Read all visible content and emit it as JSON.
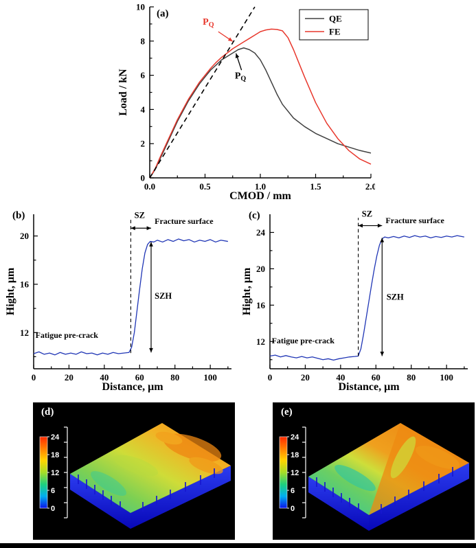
{
  "figure": {
    "background": "#ffffff",
    "panels": {
      "a": {
        "label": "(a)"
      },
      "b": {
        "label": "(b)"
      },
      "c": {
        "label": "(c)"
      },
      "d": {
        "label": "(d)"
      },
      "e": {
        "label": "(e)"
      }
    },
    "colormap": {
      "ticks_top_to_bottom": [
        "24",
        "18",
        "12",
        "6",
        "0"
      ],
      "colors_bottom_to_top": [
        "#0b14e8",
        "#00aef0",
        "#1ecf7e",
        "#a6dc28",
        "#ffd400",
        "#ff7f00",
        "#ff2a00"
      ]
    }
  },
  "chart_data": [
    {
      "id": "a",
      "type": "line",
      "xlabel": "CMOD / mm",
      "ylabel": "Load / kN",
      "xlim": [
        0,
        2
      ],
      "ylim": [
        0,
        10
      ],
      "xticks": [
        {
          "v": 0,
          "t": "0.0"
        },
        {
          "v": 0.5,
          "t": "0.5"
        },
        {
          "v": 1,
          "t": "1.0"
        },
        {
          "v": 1.5,
          "t": "1.5"
        },
        {
          "v": 2,
          "t": "2.0"
        }
      ],
      "yticks": [
        {
          "v": 0,
          "t": "0"
        },
        {
          "v": 2,
          "t": "2"
        },
        {
          "v": 4,
          "t": "4"
        },
        {
          "v": 6,
          "t": "6"
        },
        {
          "v": 8,
          "t": "8"
        },
        {
          "v": 10,
          "t": "10"
        }
      ],
      "xminor": [
        0.25,
        0.75,
        1.25,
        1.75
      ],
      "yminor": [
        1,
        3,
        5,
        7,
        9
      ],
      "legend_position": "top-right",
      "legend": [
        {
          "label": "QE",
          "color": "#404040"
        },
        {
          "label": "FE",
          "color": "#e8372c"
        }
      ],
      "series": [
        {
          "name": "QE",
          "color": "#404040",
          "width": 1.5,
          "x": [
            0,
            0.05,
            0.1,
            0.15,
            0.2,
            0.25,
            0.3,
            0.35,
            0.4,
            0.45,
            0.5,
            0.55,
            0.6,
            0.65,
            0.7,
            0.75,
            0.8,
            0.85,
            0.9,
            0.95,
            1.0,
            1.05,
            1.1,
            1.15,
            1.2,
            1.3,
            1.4,
            1.5,
            1.6,
            1.7,
            1.8,
            1.9,
            2.0
          ],
          "y": [
            0,
            0.5,
            1.2,
            1.9,
            2.6,
            3.3,
            3.9,
            4.5,
            5.0,
            5.5,
            5.9,
            6.3,
            6.6,
            6.9,
            7.1,
            7.3,
            7.5,
            7.6,
            7.5,
            7.3,
            6.9,
            6.3,
            5.6,
            4.9,
            4.3,
            3.5,
            3.0,
            2.6,
            2.3,
            2.0,
            1.8,
            1.6,
            1.45
          ]
        },
        {
          "name": "FE",
          "color": "#e8372c",
          "width": 1.5,
          "x": [
            0,
            0.05,
            0.1,
            0.15,
            0.2,
            0.25,
            0.3,
            0.35,
            0.4,
            0.45,
            0.5,
            0.55,
            0.6,
            0.65,
            0.7,
            0.75,
            0.8,
            0.85,
            0.9,
            0.95,
            1.0,
            1.05,
            1.1,
            1.15,
            1.2,
            1.25,
            1.3,
            1.35,
            1.4,
            1.5,
            1.6,
            1.7,
            1.8,
            1.9,
            2.0
          ],
          "y": [
            0,
            0.55,
            1.3,
            2.0,
            2.7,
            3.4,
            4.0,
            4.6,
            5.1,
            5.6,
            6.0,
            6.4,
            6.75,
            7.05,
            7.3,
            7.55,
            7.75,
            7.95,
            8.15,
            8.35,
            8.55,
            8.65,
            8.7,
            8.68,
            8.6,
            8.2,
            7.5,
            6.7,
            5.9,
            4.4,
            3.2,
            2.3,
            1.6,
            1.1,
            0.8
          ]
        },
        {
          "name": "95-percent-secant",
          "color": "#000000",
          "width": 1.6,
          "dash": "7,5",
          "x": [
            0,
            0.95
          ],
          "y": [
            0,
            10
          ]
        }
      ],
      "annotations": [
        {
          "type": "text",
          "text": "P",
          "sub": "Q",
          "x": 0.53,
          "y": 8.95,
          "color": "#e8372c",
          "size": 14
        },
        {
          "type": "arrow",
          "x1": 0.62,
          "y1": 8.55,
          "x2": 0.75,
          "y2": 7.98,
          "color": "#e8372c"
        },
        {
          "type": "text",
          "text": "P",
          "sub": "Q",
          "x": 0.82,
          "y": 5.8,
          "color": "#000000",
          "size": 14
        },
        {
          "type": "arrow",
          "x1": 0.83,
          "y1": 6.3,
          "x2": 0.78,
          "y2": 7.28,
          "color": "#000000"
        }
      ]
    },
    {
      "id": "b",
      "type": "line",
      "xlabel": "Distance, μm",
      "ylabel": "Hight, μm",
      "xlim": [
        0,
        112
      ],
      "ylim": [
        9,
        21.8
      ],
      "xticks": [
        {
          "v": 0,
          "t": "0"
        },
        {
          "v": 20,
          "t": "20"
        },
        {
          "v": 40,
          "t": "40"
        },
        {
          "v": 60,
          "t": "60"
        },
        {
          "v": 80,
          "t": "80"
        },
        {
          "v": 100,
          "t": "100"
        }
      ],
      "yticks": [
        {
          "v": 12,
          "t": "12"
        },
        {
          "v": 16,
          "t": "16"
        },
        {
          "v": 20,
          "t": "20"
        }
      ],
      "xminor": [
        10,
        30,
        50,
        70,
        90,
        110
      ],
      "yminor": [
        10,
        14,
        18
      ],
      "series": [
        {
          "name": "height-profile",
          "color": "#1f35b5",
          "width": 1.3,
          "x": [
            0,
            3,
            6,
            9,
            12,
            15,
            18,
            21,
            24,
            27,
            30,
            33,
            36,
            39,
            42,
            45,
            48,
            51,
            54,
            55.5,
            57,
            58.5,
            60,
            61.5,
            63,
            64.5,
            66,
            68,
            70,
            73,
            76,
            79,
            82,
            85,
            88,
            91,
            94,
            97,
            100,
            103,
            106,
            110
          ],
          "y": [
            10.25,
            10.4,
            10.2,
            10.3,
            10.15,
            10.35,
            10.2,
            10.3,
            10.2,
            10.4,
            10.25,
            10.3,
            10.15,
            10.3,
            10.2,
            10.35,
            10.25,
            10.3,
            10.35,
            10.8,
            12.0,
            13.8,
            15.6,
            17.3,
            18.6,
            19.3,
            19.55,
            19.5,
            19.65,
            19.5,
            19.7,
            19.55,
            19.75,
            19.6,
            19.7,
            19.5,
            19.65,
            19.55,
            19.7,
            19.5,
            19.65,
            19.55
          ]
        }
      ],
      "annotations": [
        {
          "type": "vline",
          "x": 55,
          "y0": 10.3,
          "y1": 21.4,
          "color": "#000000"
        },
        {
          "type": "harrow",
          "x0": 55,
          "x1": 66.5,
          "y": 20.65,
          "color": "#000000"
        },
        {
          "type": "text",
          "text": "SZ",
          "x": 60,
          "y": 21.5,
          "size": 12.5
        },
        {
          "type": "text",
          "text": "Fracture surface",
          "x": 68.5,
          "y": 21.0,
          "anchor": "start",
          "size": 12
        },
        {
          "type": "varrow",
          "x": 66.5,
          "y0": 10.35,
          "y1": 19.5,
          "color": "#000000"
        },
        {
          "type": "text",
          "text": "SZH",
          "x": 68.5,
          "y": 14.8,
          "anchor": "start",
          "size": 12.5
        },
        {
          "type": "text",
          "text": "Fatigue pre-crack",
          "x": 1,
          "y": 11.55,
          "anchor": "start",
          "size": 12
        }
      ]
    },
    {
      "id": "c",
      "type": "line",
      "xlabel": "Distance, μm",
      "ylabel": "Hight, μm",
      "xlim": [
        0,
        112
      ],
      "ylim": [
        9,
        26
      ],
      "xticks": [
        {
          "v": 0,
          "t": "0"
        },
        {
          "v": 20,
          "t": "20"
        },
        {
          "v": 40,
          "t": "40"
        },
        {
          "v": 60,
          "t": "60"
        },
        {
          "v": 80,
          "t": "80"
        },
        {
          "v": 100,
          "t": "100"
        }
      ],
      "yticks": [
        {
          "v": 12,
          "t": "12"
        },
        {
          "v": 16,
          "t": "16"
        },
        {
          "v": 20,
          "t": "20"
        },
        {
          "v": 24,
          "t": "24"
        }
      ],
      "xminor": [
        10,
        30,
        50,
        70,
        90,
        110
      ],
      "yminor": [
        10,
        14,
        18,
        22
      ],
      "series": [
        {
          "name": "height-profile",
          "color": "#1f35b5",
          "width": 1.3,
          "x": [
            0,
            3,
            6,
            9,
            12,
            15,
            18,
            21,
            24,
            27,
            30,
            33,
            36,
            39,
            42,
            45,
            48,
            50,
            51.5,
            53,
            54.5,
            56,
            57.5,
            59,
            60.5,
            62,
            63.5,
            65,
            67,
            70,
            73,
            76,
            79,
            82,
            85,
            88,
            91,
            94,
            97,
            100,
            103,
            106,
            110
          ],
          "y": [
            10.4,
            10.5,
            10.3,
            10.45,
            10.3,
            10.2,
            10.35,
            10.2,
            10.3,
            10.15,
            10.0,
            10.1,
            9.95,
            10.1,
            10.2,
            10.3,
            10.35,
            10.4,
            11.2,
            12.8,
            14.6,
            16.4,
            18.2,
            19.9,
            21.4,
            22.6,
            23.3,
            23.5,
            23.4,
            23.55,
            23.4,
            23.6,
            23.45,
            23.65,
            23.5,
            23.6,
            23.4,
            23.55,
            23.45,
            23.6,
            23.5,
            23.65,
            23.5
          ]
        }
      ],
      "annotations": [
        {
          "type": "vline",
          "x": 50,
          "y0": 10.4,
          "y1": 25.6,
          "color": "#000000"
        },
        {
          "type": "harrow",
          "x0": 50,
          "x1": 63.5,
          "y": 24.75,
          "color": "#000000"
        },
        {
          "type": "text",
          "text": "SZ",
          "x": 55,
          "y": 25.75,
          "size": 12.5
        },
        {
          "type": "text",
          "text": "Fracture surface",
          "x": 65.5,
          "y": 25.0,
          "anchor": "start",
          "size": 12
        },
        {
          "type": "varrow",
          "x": 63.5,
          "y0": 10.4,
          "y1": 23.4,
          "color": "#000000"
        },
        {
          "type": "text",
          "text": "SZH",
          "x": 66,
          "y": 16.6,
          "anchor": "start",
          "size": 12.5
        },
        {
          "type": "text",
          "text": "Fatigue pre-crack",
          "x": 1,
          "y": 11.8,
          "anchor": "start",
          "size": 12
        }
      ]
    }
  ]
}
